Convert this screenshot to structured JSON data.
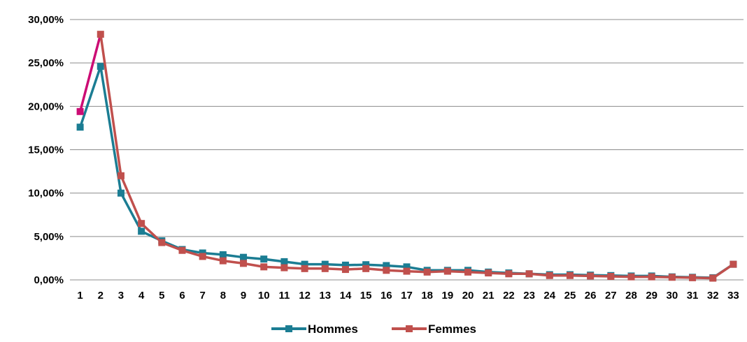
{
  "chart_data": {
    "type": "line",
    "title": "",
    "xlabel": "",
    "ylabel": "",
    "x": [
      1,
      2,
      3,
      4,
      5,
      6,
      7,
      8,
      9,
      10,
      11,
      12,
      13,
      14,
      15,
      16,
      17,
      18,
      19,
      20,
      21,
      22,
      23,
      24,
      25,
      26,
      27,
      28,
      29,
      30,
      31,
      32,
      33
    ],
    "ylim": [
      0,
      30
    ],
    "yticks": [
      "0,00%",
      "5,00%",
      "10,00%",
      "15,00%",
      "20,00%",
      "25,00%",
      "30,00%"
    ],
    "grid": true,
    "legend_position": "bottom",
    "series": [
      {
        "name": "Hommes",
        "color": "#1b7d93",
        "values": [
          17.6,
          24.6,
          10.0,
          5.6,
          4.5,
          3.5,
          3.1,
          2.9,
          2.6,
          2.4,
          2.1,
          1.8,
          1.8,
          1.7,
          1.75,
          1.65,
          1.5,
          1.1,
          1.1,
          1.1,
          0.9,
          0.8,
          0.7,
          0.6,
          0.6,
          0.55,
          0.5,
          0.45,
          0.45,
          0.35,
          0.3,
          0.25,
          1.8
        ]
      },
      {
        "name": "Femmes",
        "color": "#c0504d",
        "first_segment_color": "#cc0c74",
        "values": [
          19.4,
          28.3,
          12.0,
          6.5,
          4.3,
          3.4,
          2.7,
          2.2,
          1.9,
          1.5,
          1.4,
          1.3,
          1.3,
          1.2,
          1.3,
          1.1,
          1.0,
          0.9,
          1.0,
          0.9,
          0.8,
          0.7,
          0.7,
          0.5,
          0.5,
          0.45,
          0.4,
          0.35,
          0.35,
          0.3,
          0.25,
          0.2,
          1.8
        ]
      }
    ]
  }
}
